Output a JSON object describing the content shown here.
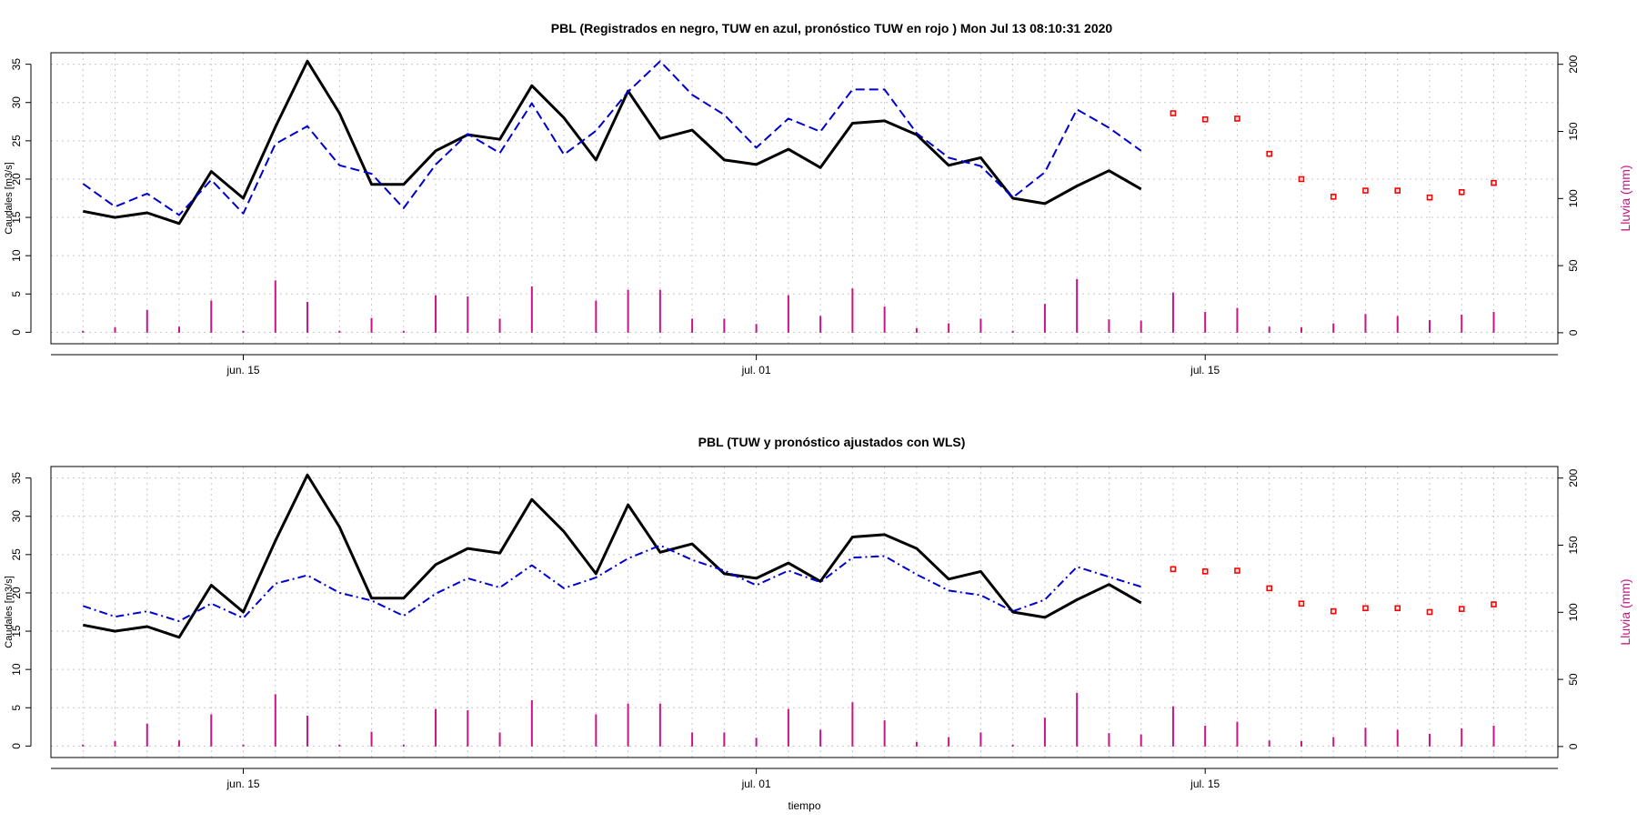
{
  "chart_data": [
    {
      "type": "line",
      "title": "PBL  (Registrados en negro, TUW en azul, pronóstico TUW en rojo ) Mon Jul 13 08:10:31 2020",
      "ylabel": "Caudales [m3/s]",
      "ylabel_right": "Lluvia (mm)",
      "xlabel": "",
      "xlim": [
        0,
        47
      ],
      "ylim": [
        -1.5,
        36.5
      ],
      "ylim_right": [
        -8.2,
        208.6
      ],
      "grid": true,
      "x_ticks": [
        {
          "x": 6,
          "label": "jun. 15"
        },
        {
          "x": 22,
          "label": "jul. 01"
        },
        {
          "x": 36,
          "label": "jul. 15"
        }
      ],
      "y_ticks": [
        0,
        5,
        10,
        15,
        20,
        25,
        30,
        35
      ],
      "y_ticks_right": [
        0,
        50,
        100,
        150,
        200
      ],
      "colors": {
        "observed": "#000000",
        "tuw": "#0000cd",
        "forecast": "#ff0000",
        "rain": "#c71585"
      },
      "series": [
        {
          "key": "observed",
          "x": [
            1,
            2,
            3,
            4,
            5,
            6,
            7,
            8,
            9,
            10,
            11,
            12,
            13,
            14,
            15,
            16,
            17,
            18,
            19,
            20,
            21,
            22,
            23,
            24,
            25,
            26,
            27,
            28,
            29,
            30,
            31,
            32,
            33,
            34
          ],
          "values": [
            15.8,
            15.0,
            15.6,
            14.2,
            21.0,
            17.5,
            26.8,
            35.4,
            28.6,
            19.3,
            19.3,
            23.7,
            25.8,
            25.2,
            32.2,
            28.0,
            22.5,
            31.5,
            25.3,
            26.4,
            22.5,
            21.9,
            23.9,
            21.5,
            27.3,
            27.6,
            25.8,
            21.8,
            22.8,
            17.5,
            16.8,
            19.1,
            21.1,
            18.7
          ]
        },
        {
          "key": "tuw",
          "x": [
            1,
            2,
            3,
            4,
            5,
            6,
            7,
            8,
            9,
            10,
            11,
            12,
            13,
            14,
            15,
            16,
            17,
            18,
            19,
            20,
            21,
            22,
            23,
            24,
            25,
            26,
            27,
            28,
            29,
            30,
            31,
            32,
            33,
            34
          ],
          "values": [
            19.4,
            16.4,
            18.1,
            15.3,
            19.9,
            15.5,
            24.6,
            26.9,
            21.8,
            20.7,
            16.2,
            21.9,
            25.9,
            23.4,
            29.9,
            23.2,
            26.3,
            31.4,
            35.4,
            31.0,
            28.4,
            24.1,
            27.9,
            26.2,
            31.7,
            31.7,
            26.0,
            22.8,
            21.7,
            17.6,
            20.9,
            29.1,
            26.7,
            23.7
          ]
        },
        {
          "key": "forecast",
          "x": [
            35,
            36,
            37,
            38,
            39,
            40,
            41,
            42,
            43,
            44,
            45
          ],
          "values": [
            28.6,
            27.8,
            27.9,
            23.3,
            20.0,
            17.7,
            18.5,
            18.5,
            17.6,
            18.3,
            19.5
          ]
        }
      ],
      "rain": {
        "x": [
          1,
          2,
          3,
          4,
          5,
          6,
          7,
          8,
          9,
          10,
          11,
          12,
          13,
          14,
          15,
          16,
          17,
          18,
          19,
          20,
          21,
          22,
          23,
          24,
          25,
          26,
          27,
          28,
          29,
          30,
          31,
          32,
          33,
          34,
          35,
          36,
          37,
          38,
          39,
          40,
          41,
          42,
          43,
          44,
          45
        ],
        "values": [
          1.5,
          4,
          17,
          4.5,
          24,
          1.5,
          39,
          23,
          1.5,
          11,
          1.5,
          28,
          27,
          10.5,
          34.5,
          0,
          24,
          32,
          32,
          10.5,
          10.5,
          6.5,
          28,
          12.5,
          33,
          19.5,
          3.5,
          7,
          10.5,
          1.5,
          21.5,
          40,
          10,
          9,
          30,
          15.5,
          18.5,
          4.5,
          4,
          7,
          14,
          12.5,
          9.5,
          13.5,
          15.5
        ]
      }
    },
    {
      "type": "line",
      "title": "PBL  (TUW y pronóstico ajustados con WLS)",
      "ylabel": "Caudales [m3/s]",
      "ylabel_right": "Lluvia (mm)",
      "xlabel": "tiempo",
      "xlim": [
        0,
        47
      ],
      "ylim": [
        -1.5,
        36.5
      ],
      "ylim_right": [
        -8.2,
        208.6
      ],
      "grid": true,
      "x_ticks": [
        {
          "x": 6,
          "label": "jun. 15"
        },
        {
          "x": 22,
          "label": "jul. 01"
        },
        {
          "x": 36,
          "label": "jul. 15"
        }
      ],
      "y_ticks": [
        0,
        5,
        10,
        15,
        20,
        25,
        30,
        35
      ],
      "y_ticks_right": [
        0,
        50,
        100,
        150,
        200
      ],
      "colors": {
        "observed": "#000000",
        "tuw": "#0000cd",
        "forecast": "#ff0000",
        "rain": "#c71585"
      },
      "series": [
        {
          "key": "observed",
          "x": [
            1,
            2,
            3,
            4,
            5,
            6,
            7,
            8,
            9,
            10,
            11,
            12,
            13,
            14,
            15,
            16,
            17,
            18,
            19,
            20,
            21,
            22,
            23,
            24,
            25,
            26,
            27,
            28,
            29,
            30,
            31,
            32,
            33,
            34
          ],
          "values": [
            15.8,
            15.0,
            15.6,
            14.2,
            21.0,
            17.5,
            26.8,
            35.4,
            28.6,
            19.3,
            19.3,
            23.7,
            25.8,
            25.2,
            32.2,
            28.0,
            22.5,
            31.5,
            25.3,
            26.4,
            22.5,
            21.9,
            23.9,
            21.5,
            27.3,
            27.6,
            25.8,
            21.8,
            22.8,
            17.5,
            16.8,
            19.1,
            21.1,
            18.7
          ]
        },
        {
          "key": "tuw",
          "x": [
            1,
            2,
            3,
            4,
            5,
            6,
            7,
            8,
            9,
            10,
            11,
            12,
            13,
            14,
            15,
            16,
            17,
            18,
            19,
            20,
            21,
            22,
            23,
            24,
            25,
            26,
            27,
            28,
            29,
            30,
            31,
            32,
            33,
            34
          ],
          "values": [
            18.3,
            16.9,
            17.6,
            16.3,
            18.6,
            16.7,
            21.2,
            22.3,
            20.0,
            19.0,
            17.0,
            19.9,
            21.9,
            20.7,
            23.6,
            20.6,
            22.0,
            24.5,
            26.2,
            24.3,
            22.9,
            21.0,
            22.9,
            21.4,
            24.6,
            24.8,
            22.4,
            20.3,
            19.7,
            17.6,
            19.1,
            23.4,
            22.1,
            20.8
          ]
        },
        {
          "key": "forecast",
          "x": [
            35,
            36,
            37,
            38,
            39,
            40,
            41,
            42,
            43,
            44,
            45
          ],
          "values": [
            23.1,
            22.8,
            22.9,
            20.6,
            18.6,
            17.6,
            18.0,
            18.0,
            17.5,
            17.9,
            18.5
          ]
        }
      ],
      "rain": {
        "x": [
          1,
          2,
          3,
          4,
          5,
          6,
          7,
          8,
          9,
          10,
          11,
          12,
          13,
          14,
          15,
          16,
          17,
          18,
          19,
          20,
          21,
          22,
          23,
          24,
          25,
          26,
          27,
          28,
          29,
          30,
          31,
          32,
          33,
          34,
          35,
          36,
          37,
          38,
          39,
          40,
          41,
          42,
          43,
          44,
          45
        ],
        "values": [
          1.5,
          4,
          17,
          4.5,
          24,
          1.5,
          39,
          23,
          1.5,
          11,
          1.5,
          28,
          27,
          10.5,
          34.5,
          0,
          24,
          32,
          32,
          10.5,
          10.5,
          6.5,
          28,
          12.5,
          33,
          19.5,
          3.5,
          7,
          10.5,
          1.5,
          21.5,
          40,
          10,
          9,
          30,
          15.5,
          18.5,
          4.5,
          4,
          7,
          14,
          12.5,
          9.5,
          13.5,
          15.5
        ]
      }
    }
  ]
}
